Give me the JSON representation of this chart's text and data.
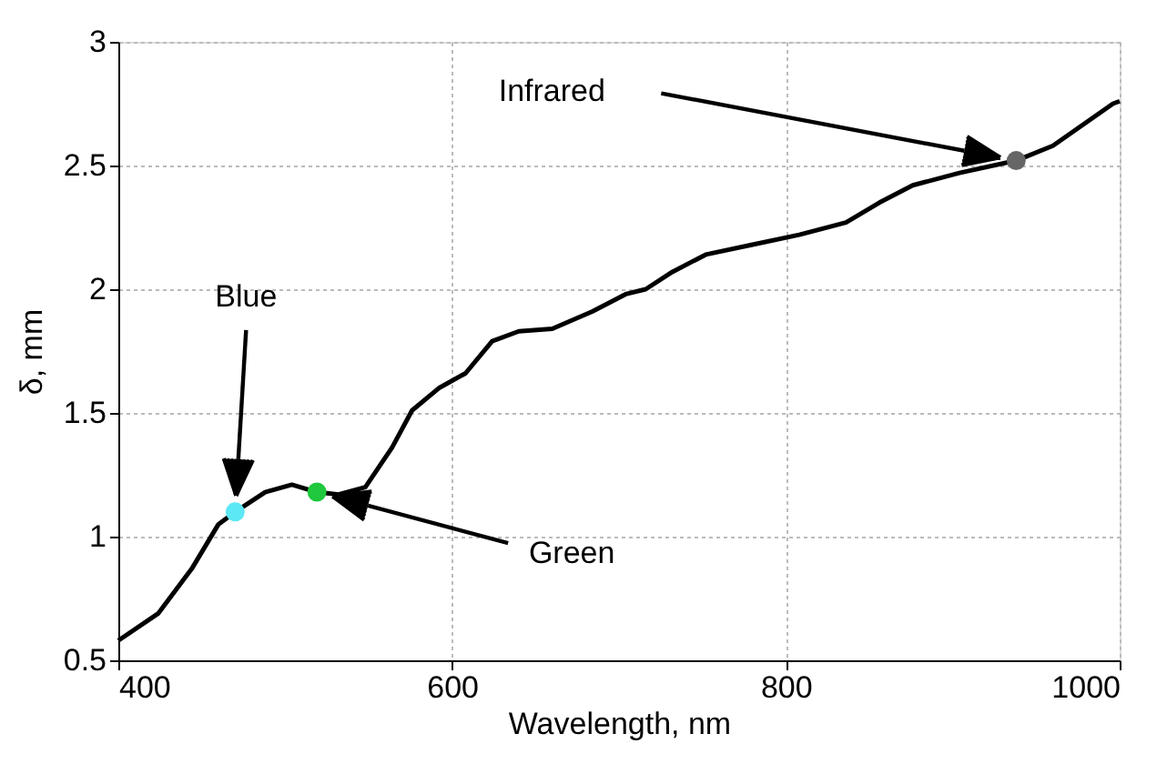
{
  "chart_data": {
    "type": "line",
    "xlabel": "Wavelength, nm",
    "ylabel": "δ, mm",
    "xlim": [
      400,
      1000
    ],
    "ylim": [
      0.5,
      3
    ],
    "xticks": [
      400,
      600,
      800,
      1000
    ],
    "yticks": [
      0.5,
      1,
      1.5,
      2,
      2.5,
      3
    ],
    "grid": true,
    "line_style": "solid",
    "series": [
      {
        "color": "#000000",
        "x": [
          400,
          424,
          444,
          460,
          470,
          488,
          504,
          519,
          532,
          548,
          564,
          576,
          592,
          608,
          624,
          640,
          660,
          684,
          704,
          716,
          732,
          752,
          780,
          808,
          836,
          856,
          876,
          904,
          938,
          960,
          996,
          1000
        ],
        "values": [
          0.58,
          0.69,
          0.87,
          1.05,
          1.1,
          1.18,
          1.21,
          1.18,
          1.17,
          1.2,
          1.36,
          1.51,
          1.6,
          1.66,
          1.79,
          1.83,
          1.84,
          1.91,
          1.98,
          2.0,
          2.07,
          2.14,
          2.18,
          2.22,
          2.27,
          2.35,
          2.42,
          2.47,
          2.52,
          2.58,
          2.75,
          2.76
        ]
      },
      {
        "type": "scatter",
        "marker": "circle",
        "x": [
          470,
          519,
          938
        ],
        "values": [
          1.1,
          1.18,
          2.52
        ],
        "colors": [
          "#5ce8f4",
          "#1fc83c",
          "#666666"
        ]
      }
    ],
    "annotations": [
      "Blue",
      "Green",
      "Infrared"
    ]
  }
}
